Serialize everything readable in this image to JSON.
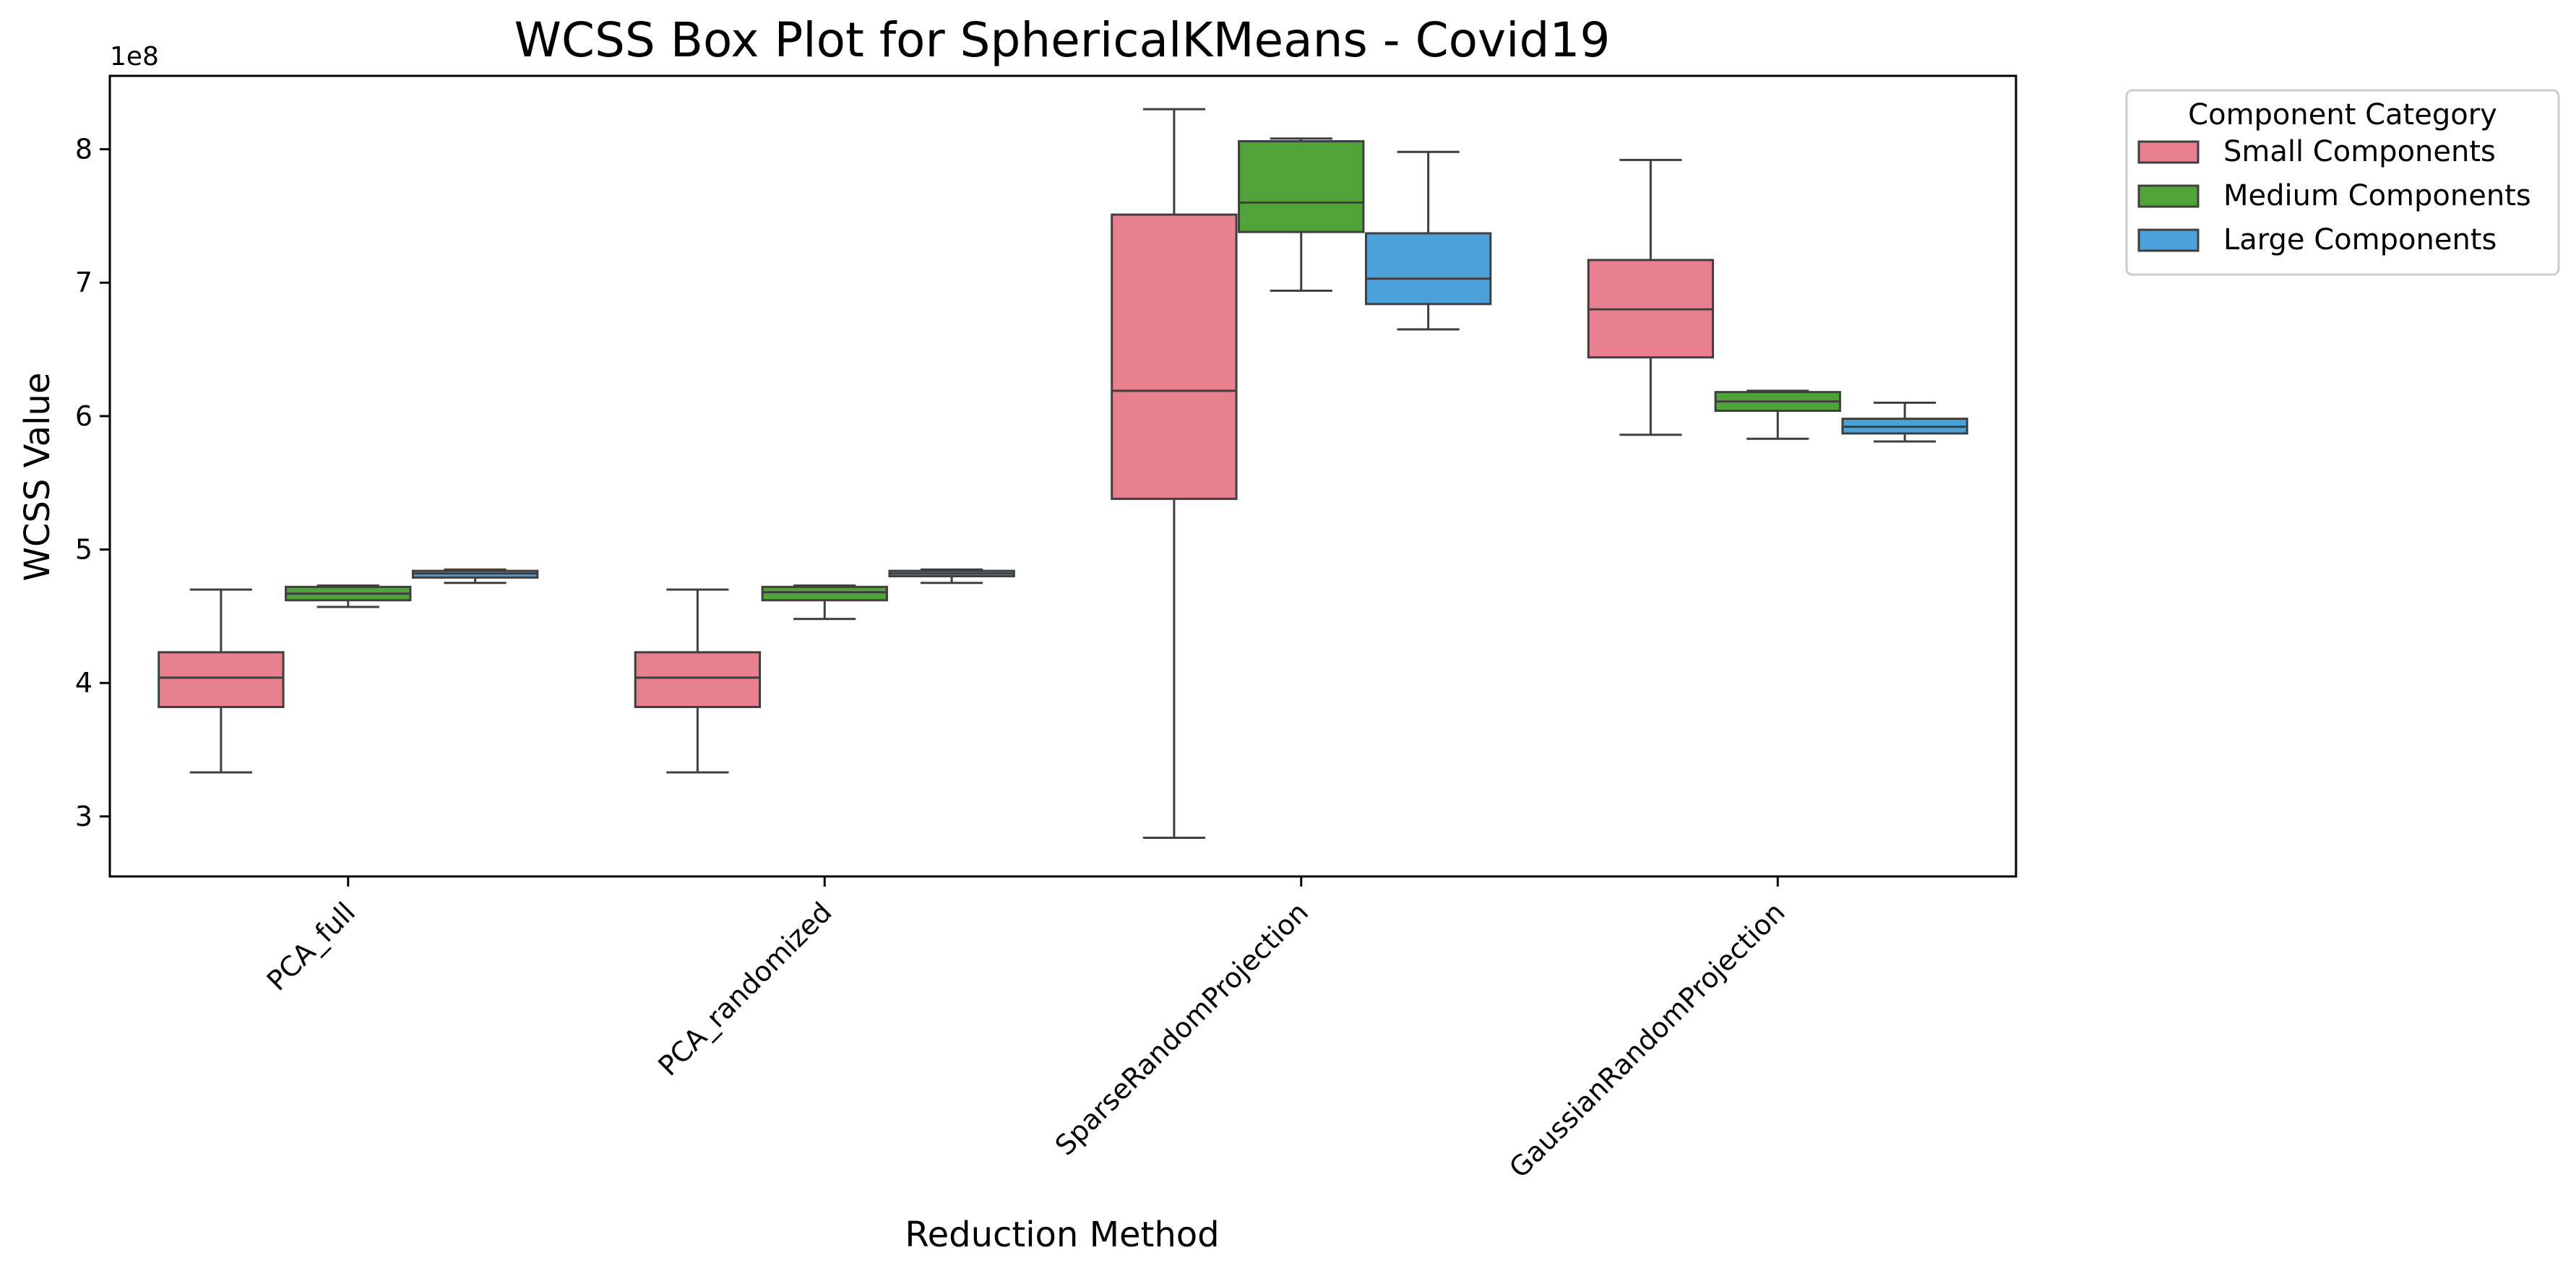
{
  "chart_data": {
    "type": "box",
    "title": "WCSS Box Plot for SphericalKMeans - Covid19",
    "xlabel": "Reduction Method",
    "ylabel": "WCSS Value",
    "y_offset_label": "1e8",
    "y_scale": 100000000,
    "ylim": [
      2.55,
      8.55
    ],
    "yticks": [
      3,
      4,
      5,
      6,
      7,
      8
    ],
    "categories": [
      "PCA_full",
      "PCA_randomized",
      "SparseRandomProjection",
      "GaussianRandomProjection"
    ],
    "legend": {
      "title": "Component Category",
      "placement": "outside-top-right"
    },
    "series": [
      {
        "name": "Small Components",
        "color": "#e8808f",
        "boxes": [
          {
            "whisker_low": 3.33,
            "q1": 3.82,
            "median": 4.04,
            "q3": 4.23,
            "whisker_high": 4.7
          },
          {
            "whisker_low": 3.33,
            "q1": 3.82,
            "median": 4.04,
            "q3": 4.23,
            "whisker_high": 4.7
          },
          {
            "whisker_low": 2.84,
            "q1": 5.38,
            "median": 6.19,
            "q3": 7.51,
            "whisker_high": 8.3
          },
          {
            "whisker_low": 5.86,
            "q1": 6.44,
            "median": 6.8,
            "q3": 7.17,
            "whisker_high": 7.92
          }
        ]
      },
      {
        "name": "Medium Components",
        "color": "#50a338",
        "boxes": [
          {
            "whisker_low": 4.57,
            "q1": 4.62,
            "median": 4.67,
            "q3": 4.72,
            "whisker_high": 4.73
          },
          {
            "whisker_low": 4.48,
            "q1": 4.62,
            "median": 4.68,
            "q3": 4.72,
            "whisker_high": 4.73
          },
          {
            "whisker_low": 6.94,
            "q1": 7.38,
            "median": 7.6,
            "q3": 8.06,
            "whisker_high": 8.08
          },
          {
            "whisker_low": 5.83,
            "q1": 6.04,
            "median": 6.11,
            "q3": 6.18,
            "whisker_high": 6.19
          }
        ]
      },
      {
        "name": "Large Components",
        "color": "#4ca1da",
        "boxes": [
          {
            "whisker_low": 4.75,
            "q1": 4.79,
            "median": 4.82,
            "q3": 4.84,
            "whisker_high": 4.85
          },
          {
            "whisker_low": 4.75,
            "q1": 4.8,
            "median": 4.82,
            "q3": 4.84,
            "whisker_high": 4.85
          },
          {
            "whisker_low": 6.65,
            "q1": 6.84,
            "median": 7.03,
            "q3": 7.37,
            "whisker_high": 7.98
          },
          {
            "whisker_low": 5.81,
            "q1": 5.87,
            "median": 5.92,
            "q3": 5.98,
            "whisker_high": 6.1
          }
        ]
      }
    ]
  }
}
